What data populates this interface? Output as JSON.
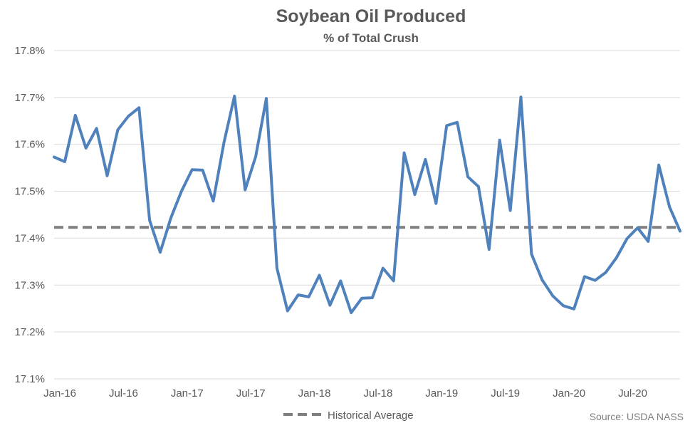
{
  "chart_data": {
    "type": "line",
    "title": "Soybean Oil Produced",
    "subtitle": "% of Total Crush",
    "xlabel": "",
    "ylabel": "",
    "ylim": [
      17.1,
      17.8
    ],
    "y_ticks": [
      "17.1%",
      "17.2%",
      "17.3%",
      "17.4%",
      "17.5%",
      "17.6%",
      "17.7%",
      "17.8%"
    ],
    "x_ticks": [
      "Jan-16",
      "Jul-16",
      "Jan-17",
      "Jul-17",
      "Jan-18",
      "Jul-18",
      "Jan-19",
      "Jul-19",
      "Jan-20",
      "Jul-20"
    ],
    "grid": true,
    "legend_position": "bottom",
    "x": [
      "Jan-16",
      "Feb-16",
      "Mar-16",
      "Apr-16",
      "May-16",
      "Jun-16",
      "Jul-16",
      "Aug-16",
      "Sep-16",
      "Oct-16",
      "Nov-16",
      "Dec-16",
      "Jan-17",
      "Feb-17",
      "Mar-17",
      "Apr-17",
      "May-17",
      "Jun-17",
      "Jul-17",
      "Aug-17",
      "Sep-17",
      "Oct-17",
      "Nov-17",
      "Dec-17",
      "Jan-18",
      "Feb-18",
      "Mar-18",
      "Apr-18",
      "May-18",
      "Jun-18",
      "Jul-18",
      "Aug-18",
      "Sep-18",
      "Oct-18",
      "Nov-18",
      "Dec-18",
      "Jan-19",
      "Feb-19",
      "Mar-19",
      "Apr-19",
      "May-19",
      "Jun-19",
      "Jul-19",
      "Aug-19",
      "Sep-19",
      "Oct-19",
      "Nov-19",
      "Dec-19",
      "Jan-20",
      "Feb-20",
      "Mar-20",
      "Apr-20",
      "May-20",
      "Jun-20",
      "Jul-20",
      "Aug-20",
      "Sep-20",
      "Oct-20",
      "Nov-20",
      "Dec-20"
    ],
    "series": [
      {
        "color": "#4f81bd",
        "values": [
          17.573,
          17.563,
          17.662,
          17.592,
          17.634,
          17.533,
          17.631,
          17.66,
          17.678,
          17.438,
          17.37,
          17.443,
          17.5,
          17.546,
          17.545,
          17.479,
          17.603,
          17.703,
          17.503,
          17.574,
          17.698,
          17.336,
          17.245,
          17.279,
          17.275,
          17.321,
          17.257,
          17.309,
          17.241,
          17.272,
          17.273,
          17.336,
          17.309,
          17.582,
          17.493,
          17.568,
          17.474,
          17.64,
          17.647,
          17.531,
          17.51,
          17.376,
          17.609,
          17.459,
          17.701,
          17.366,
          17.311,
          17.277,
          17.256,
          17.249,
          17.318,
          17.31,
          17.327,
          17.358,
          17.399,
          17.422,
          17.393,
          17.556,
          17.467,
          17.415
        ]
      },
      {
        "name": "Historical Average",
        "color": "#7f7f7f",
        "dashed": true,
        "constant": 17.423
      }
    ],
    "source": "Source: USDA NASS"
  }
}
